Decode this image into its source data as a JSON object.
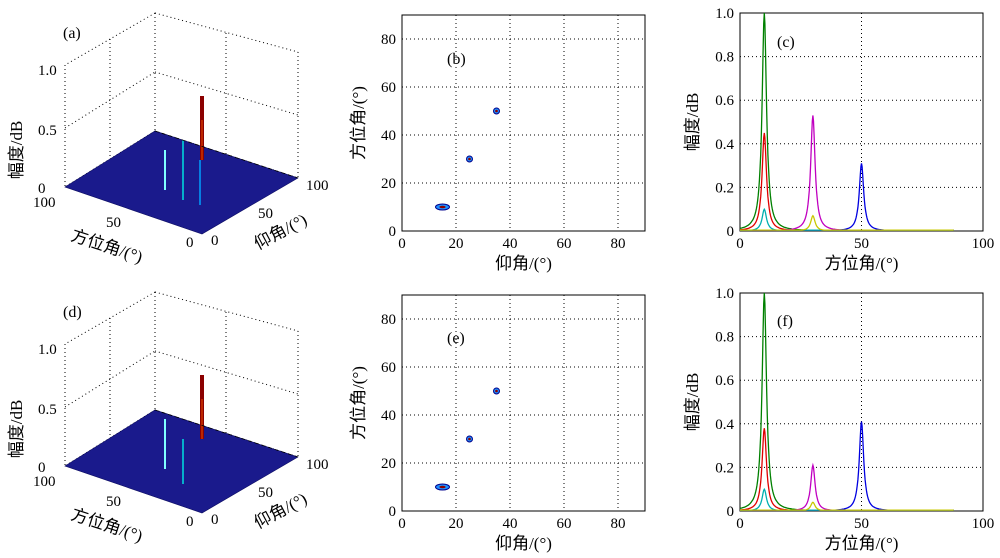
{
  "panels_3d": [
    {
      "label": "(a)",
      "zlabel": "幅度/dB",
      "ylabel": "仰角/(°)",
      "xlabel": "方位角/(°)",
      "zticks": [
        "0",
        "0.5",
        "1.0"
      ],
      "yticks": [
        "0",
        "50",
        "100"
      ],
      "xticks": [
        "0",
        "50",
        "100"
      ]
    },
    {
      "label": "(d)",
      "zlabel": "幅度/dB",
      "ylabel": "仰角/(°)",
      "xlabel": "方位角/(°)",
      "zticks": [
        "0",
        "0.5",
        "1.0"
      ],
      "yticks": [
        "0",
        "50",
        "100"
      ],
      "xticks": [
        "0",
        "50",
        "100"
      ]
    }
  ],
  "chart_data": [
    {
      "panel": "(a)",
      "type": "surface3d",
      "zlim": [
        0,
        1
      ],
      "xlim": [
        0,
        100
      ],
      "ylim": [
        0,
        100
      ],
      "peaks": [
        {
          "x": 10,
          "y": 15,
          "z": 1.0,
          "color": "#8b0000"
        },
        {
          "x": 30,
          "y": 25,
          "z": 0.25,
          "color": "#00e0e0"
        },
        {
          "x": 50,
          "y": 35,
          "z": 0.3,
          "color": "#1010c0"
        }
      ],
      "base_color": "#1a1a8c",
      "grid": true
    },
    {
      "panel": "(b)",
      "type": "contour",
      "xlabel": "仰角/(°)",
      "ylabel": "方位角/(°)",
      "xlim": [
        0,
        90
      ],
      "ylim": [
        0,
        90
      ],
      "xticks": [
        0,
        20,
        40,
        60,
        80
      ],
      "yticks": [
        0,
        20,
        40,
        60,
        80
      ],
      "grid": true,
      "peaks": [
        {
          "x": 15,
          "y": 10
        },
        {
          "x": 25,
          "y": 30
        },
        {
          "x": 35,
          "y": 50
        }
      ]
    },
    {
      "panel": "(c)",
      "type": "line",
      "xlabel": "方位角/(°)",
      "ylabel": "幅度/dB",
      "xlim": [
        0,
        100
      ],
      "ylim": [
        0,
        1.0
      ],
      "xticks": [
        "0",
        "50",
        "100"
      ],
      "yticks": [
        "0",
        "0.2",
        "0.4",
        "0.6",
        "0.8",
        "1.0"
      ],
      "grid": true,
      "series": [
        {
          "color": "#008000",
          "center": 10,
          "height": 1.0
        },
        {
          "color": "#e00000",
          "center": 10,
          "height": 0.45
        },
        {
          "color": "#c000c0",
          "center": 30,
          "height": 0.53
        },
        {
          "color": "#0000e0",
          "center": 50,
          "height": 0.31
        },
        {
          "color": "#00b0b0",
          "center": 10,
          "height": 0.1
        },
        {
          "color": "#c8c800",
          "center": 30,
          "height": 0.07
        }
      ]
    },
    {
      "panel": "(d)",
      "type": "surface3d",
      "zlim": [
        0,
        1
      ],
      "xlim": [
        0,
        100
      ],
      "ylim": [
        0,
        100
      ],
      "peaks": [
        {
          "x": 10,
          "y": 15,
          "z": 1.0,
          "color": "#8b0000"
        },
        {
          "x": 30,
          "y": 25,
          "z": 0.2,
          "color": "#00e0e0"
        },
        {
          "x": 50,
          "y": 35,
          "z": 0.35,
          "color": "#1010c0"
        }
      ],
      "base_color": "#1a1a8c",
      "grid": true
    },
    {
      "panel": "(e)",
      "type": "contour",
      "xlabel": "仰角/(°)",
      "ylabel": "方位角/(°)",
      "xlim": [
        0,
        90
      ],
      "ylim": [
        0,
        90
      ],
      "xticks": [
        0,
        20,
        40,
        60,
        80
      ],
      "yticks": [
        0,
        20,
        40,
        60,
        80
      ],
      "grid": true,
      "peaks": [
        {
          "x": 15,
          "y": 10
        },
        {
          "x": 25,
          "y": 30
        },
        {
          "x": 35,
          "y": 50
        }
      ]
    },
    {
      "panel": "(f)",
      "type": "line",
      "xlabel": "方位角/(°)",
      "ylabel": "幅度/dB",
      "xlim": [
        0,
        100
      ],
      "ylim": [
        0,
        1.0
      ],
      "xticks": [
        "0",
        "50",
        "100"
      ],
      "yticks": [
        "0",
        "0.2",
        "0.4",
        "0.6",
        "0.8",
        "1.0"
      ],
      "grid": true,
      "series": [
        {
          "color": "#008000",
          "center": 10,
          "height": 1.0
        },
        {
          "color": "#e00000",
          "center": 10,
          "height": 0.38
        },
        {
          "color": "#c000c0",
          "center": 30,
          "height": 0.21
        },
        {
          "color": "#0000e0",
          "center": 50,
          "height": 0.41
        },
        {
          "color": "#00b0b0",
          "center": 10,
          "height": 0.1
        },
        {
          "color": "#c8c800",
          "center": 30,
          "height": 0.04
        }
      ]
    }
  ]
}
